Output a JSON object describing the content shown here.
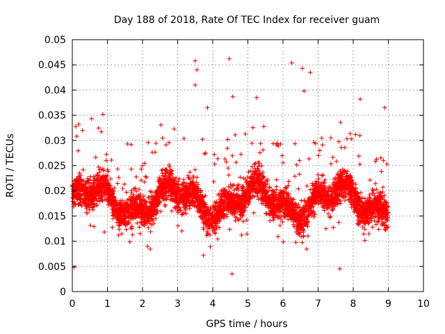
{
  "chart_data": {
    "type": "scatter",
    "title": "Day 188 of 2018, Rate Of TEC Index for receiver guam",
    "xlabel": "GPS time / hours",
    "ylabel": "ROTI / TECUs",
    "xlim": [
      0,
      10
    ],
    "ylim": [
      0,
      0.05
    ],
    "x_ticks": [
      "0",
      "1",
      "2",
      "3",
      "4",
      "5",
      "6",
      "7",
      "8",
      "9",
      "10"
    ],
    "y_ticks": [
      "0",
      "0.005",
      "0.01",
      "0.015",
      "0.02",
      "0.025",
      "0.03",
      "0.035",
      "0.04",
      "0.045",
      "0.05"
    ],
    "grid": true,
    "marker": "plus",
    "color": "#ff0000",
    "series": [
      {
        "name": "ROTI",
        "generator": {
          "x_range": [
            0,
            9
          ],
          "count": 4200,
          "typical_range": [
            0.005,
            0.03
          ],
          "center": 0.018
        },
        "notable_points": [
          {
            "x": 3.5,
            "y": 0.0458
          },
          {
            "x": 3.55,
            "y": 0.044
          },
          {
            "x": 3.5,
            "y": 0.041
          },
          {
            "x": 4.47,
            "y": 0.0462
          },
          {
            "x": 6.25,
            "y": 0.0454
          },
          {
            "x": 6.55,
            "y": 0.0443
          },
          {
            "x": 6.78,
            "y": 0.0435
          },
          {
            "x": 6.6,
            "y": 0.0398
          },
          {
            "x": 4.57,
            "y": 0.0387
          },
          {
            "x": 8.2,
            "y": 0.0382
          },
          {
            "x": 5.25,
            "y": 0.0385
          },
          {
            "x": 3.85,
            "y": 0.0365
          },
          {
            "x": 0.55,
            "y": 0.0343
          },
          {
            "x": 8.9,
            "y": 0.0365
          },
          {
            "x": 4.55,
            "y": 0.0035
          },
          {
            "x": 0.05,
            "y": 0.0048
          },
          {
            "x": 7.62,
            "y": 0.0045
          }
        ]
      }
    ]
  }
}
